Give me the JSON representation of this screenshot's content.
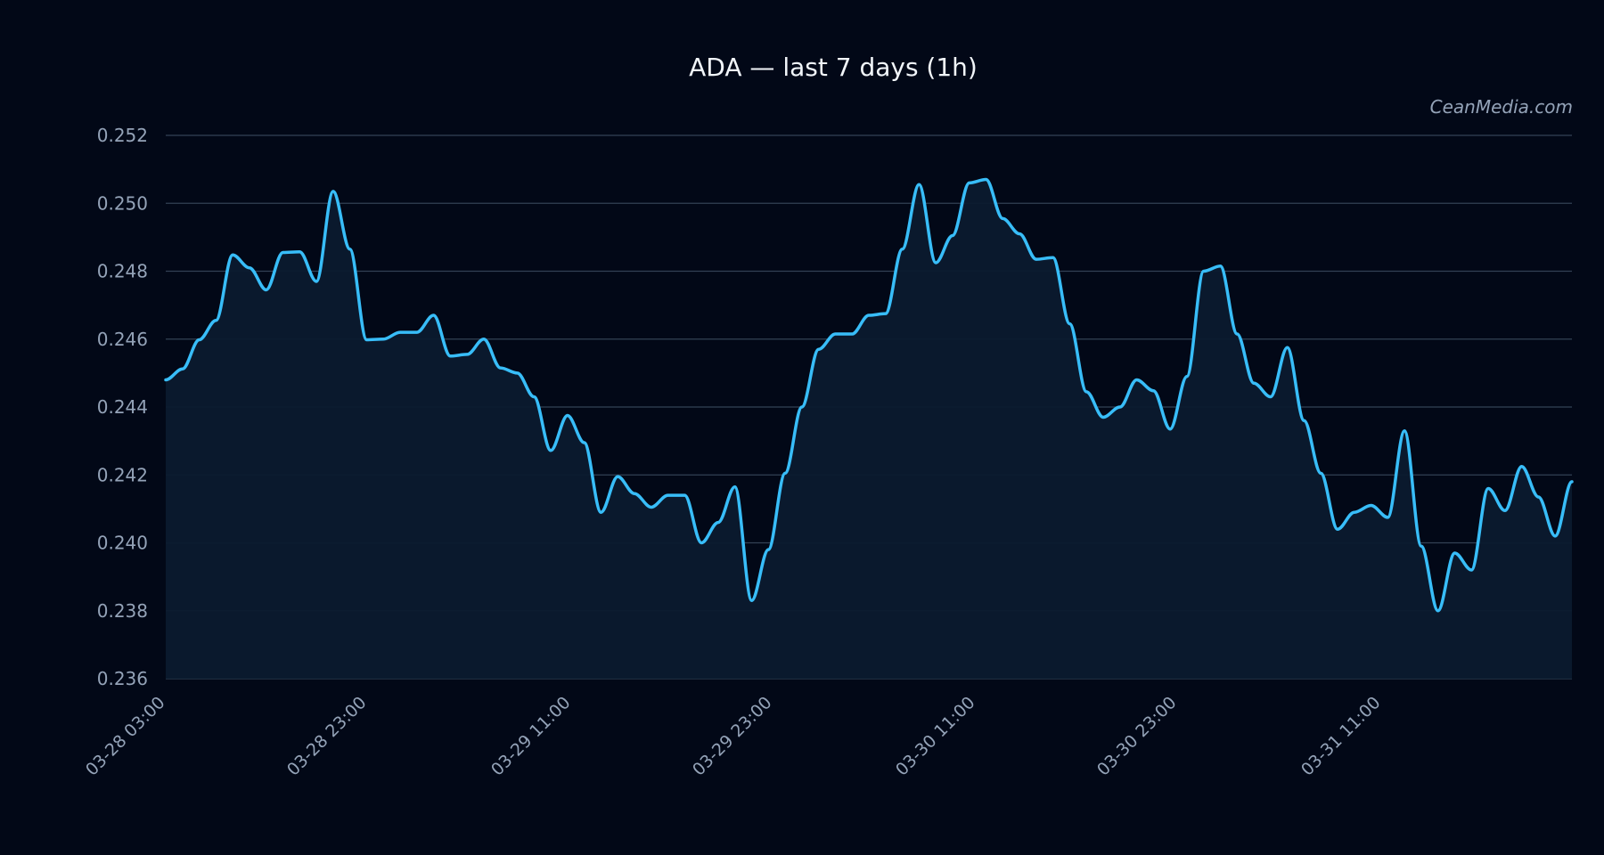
{
  "chart_data": {
    "type": "line",
    "title": "ADA — last 7 days (1h)",
    "watermark": "CeanMedia.com",
    "xlabel": "",
    "ylabel": "",
    "ylim": [
      0.236,
      0.252
    ],
    "yticks": [
      "0.252",
      "0.250",
      "0.248",
      "0.246",
      "0.244",
      "0.242",
      "0.240",
      "0.238",
      "0.236"
    ],
    "xticks": [
      "03-28 03:00",
      "03-28 23:00",
      "03-29 11:00",
      "03-29 23:00",
      "03-30 11:00",
      "03-30 23:00",
      "03-31 11:00"
    ],
    "grid": true,
    "colors": {
      "line": "#38bdf8",
      "background": "#020817",
      "grid": "#334155",
      "text": "#94a3b8"
    },
    "series": [
      {
        "values": [
          0.2448,
          0.24512,
          0.24598,
          0.24655,
          0.24848,
          0.2481,
          0.24745,
          0.24855,
          0.24857,
          0.2477,
          0.25035,
          0.24865,
          0.24598,
          0.246,
          0.2462,
          0.2462,
          0.2467,
          0.2455,
          0.24555,
          0.246,
          0.24515,
          0.245,
          0.2443,
          0.24272,
          0.24375,
          0.24295,
          0.2409,
          0.24195,
          0.24145,
          0.24105,
          0.2414,
          0.2414,
          0.24,
          0.2406,
          0.24165,
          0.2383,
          0.2398,
          0.24205,
          0.244,
          0.2457,
          0.24615,
          0.24615,
          0.2467,
          0.24675,
          0.24865,
          0.25055,
          0.24825,
          0.24905,
          0.2506,
          0.2507,
          0.24955,
          0.2491,
          0.24835,
          0.2484,
          0.24645,
          0.24445,
          0.2437,
          0.244,
          0.2448,
          0.24448,
          0.24335,
          0.2449,
          0.248,
          0.24815,
          0.24615,
          0.2447,
          0.2443,
          0.24575,
          0.2436,
          0.24205,
          0.2404,
          0.2409,
          0.2411,
          0.24075,
          0.2433,
          0.2399,
          0.238,
          0.2397,
          0.2392,
          0.2416,
          0.24095,
          0.24225,
          0.24135,
          0.2402,
          0.2418
        ]
      }
    ]
  }
}
